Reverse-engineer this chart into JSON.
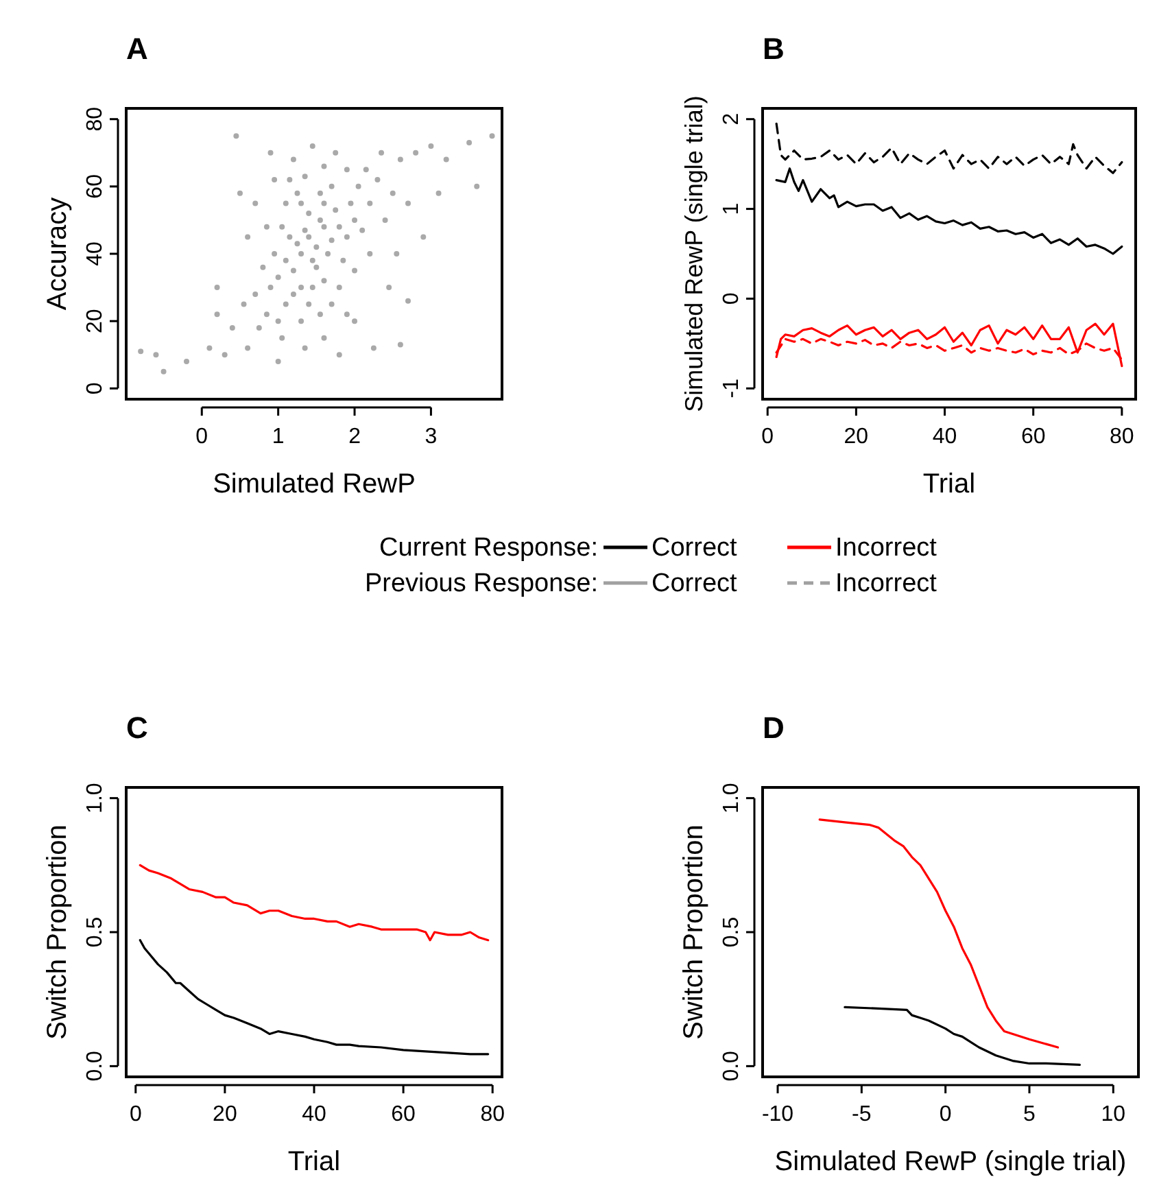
{
  "chart_data": [
    {
      "type": "scatter",
      "title": "A",
      "xlabel": "Simulated RewP",
      "ylabel": "Accuracy",
      "marker": "circle",
      "color": "#404040",
      "xlim": [
        -0.99,
        3.93
      ],
      "ylim": [
        -3.2,
        83.2
      ],
      "xticks": [
        0,
        1,
        2,
        3
      ],
      "yticks": [
        0,
        20,
        40,
        60,
        80
      ],
      "x": [
        1.4,
        1.5,
        1.3,
        1.6,
        1.45,
        1.55,
        1.2,
        1.7,
        1.35,
        1.65,
        1.25,
        1.5,
        1.4,
        1.6,
        1.1,
        1.8,
        1.3,
        1.75,
        1.15,
        1.9,
        1.0,
        1.2,
        1.45,
        1.85,
        1.95,
        1.05,
        1.3,
        1.55,
        1.7,
        2.0,
        1.1,
        1.4,
        1.6,
        1.8,
        2.1,
        2.05,
        1.25,
        0.95,
        0.9,
        0.85,
        1.0,
        1.3,
        1.55,
        1.7,
        2.0,
        2.2,
        2.3,
        2.15,
        1.9,
        1.6,
        1.35,
        1.1,
        0.85,
        0.8,
        0.7,
        0.75,
        1.05,
        1.35,
        1.6,
        1.9,
        2.2,
        2.4,
        2.5,
        2.6,
        2.35,
        1.75,
        1.45,
        1.2,
        0.95,
        0.6,
        0.5,
        0.55,
        0.4,
        0.6,
        0.3,
        0.1,
        -0.2,
        -0.5,
        -0.8,
        -0.6,
        0.2,
        0.45,
        2.7,
        2.8,
        3.0,
        3.2,
        3.5,
        3.8,
        3.6,
        2.9,
        2.7,
        2.6,
        2.25,
        1.8,
        1.0,
        0.2,
        2.45,
        2.55,
        3.1,
        2.0,
        1.15,
        0.7,
        0.9
      ],
      "values": [
        45,
        42,
        40,
        48,
        38,
        50,
        35,
        44,
        47,
        40,
        43,
        36,
        52,
        55,
        38,
        48,
        30,
        53,
        45,
        45,
        33,
        28,
        30,
        38,
        55,
        48,
        55,
        58,
        60,
        50,
        25,
        25,
        32,
        30,
        47,
        60,
        58,
        40,
        30,
        22,
        20,
        20,
        22,
        25,
        35,
        55,
        62,
        65,
        65,
        66,
        63,
        55,
        48,
        36,
        28,
        18,
        15,
        12,
        15,
        22,
        40,
        50,
        58,
        68,
        70,
        70,
        72,
        68,
        62,
        45,
        58,
        25,
        18,
        12,
        10,
        12,
        8,
        5,
        11,
        10,
        22,
        75,
        55,
        70,
        72,
        68,
        73,
        75,
        60,
        45,
        26,
        13,
        12,
        10,
        8,
        30,
        30,
        40,
        58,
        20,
        62,
        55,
        70
      ]
    },
    {
      "type": "line",
      "title": "B",
      "xlabel": "Trial",
      "ylabel": "Simulated RewP (single trial)",
      "xlim": [
        -1.12,
        83.12
      ],
      "ylim": [
        -1.12,
        2.12
      ],
      "xticks": [
        0,
        20,
        40,
        60,
        80
      ],
      "yticks": [
        -1,
        0,
        1,
        2
      ],
      "series": [
        {
          "color": "#000000",
          "line_style": "solid",
          "x": [
            2,
            4,
            5,
            6,
            7,
            8,
            10,
            12,
            14,
            15,
            16,
            18,
            20,
            22,
            24,
            26,
            28,
            30,
            32,
            34,
            36,
            38,
            40,
            42,
            44,
            46,
            48,
            50,
            52,
            54,
            56,
            58,
            60,
            62,
            64,
            66,
            68,
            70,
            72,
            74,
            76,
            78,
            80
          ],
          "values": [
            1.32,
            1.3,
            1.45,
            1.3,
            1.2,
            1.32,
            1.08,
            1.22,
            1.12,
            1.15,
            1.02,
            1.08,
            1.03,
            1.05,
            1.05,
            0.98,
            1.02,
            0.9,
            0.95,
            0.88,
            0.92,
            0.86,
            0.84,
            0.87,
            0.82,
            0.85,
            0.78,
            0.8,
            0.75,
            0.76,
            0.72,
            0.74,
            0.68,
            0.72,
            0.62,
            0.66,
            0.6,
            0.67,
            0.58,
            0.6,
            0.56,
            0.5,
            0.58
          ]
        },
        {
          "color": "#000000",
          "line_style": "dashed",
          "x": [
            2,
            3,
            4,
            6,
            8,
            10,
            12,
            14,
            16,
            18,
            20,
            22,
            24,
            26,
            28,
            30,
            32,
            34,
            36,
            38,
            40,
            42,
            44,
            46,
            48,
            50,
            52,
            54,
            56,
            58,
            60,
            62,
            64,
            66,
            68,
            69,
            70,
            72,
            74,
            76,
            78,
            80
          ],
          "values": [
            1.95,
            1.6,
            1.55,
            1.65,
            1.55,
            1.56,
            1.58,
            1.65,
            1.55,
            1.6,
            1.5,
            1.62,
            1.52,
            1.58,
            1.68,
            1.5,
            1.62,
            1.55,
            1.5,
            1.58,
            1.65,
            1.45,
            1.6,
            1.5,
            1.55,
            1.45,
            1.58,
            1.5,
            1.58,
            1.48,
            1.55,
            1.6,
            1.5,
            1.58,
            1.5,
            1.72,
            1.6,
            1.45,
            1.58,
            1.48,
            1.4,
            1.52
          ]
        },
        {
          "color": "#ff0000",
          "line_style": "solid",
          "x": [
            2,
            3,
            4,
            6,
            8,
            10,
            12,
            14,
            16,
            18,
            20,
            22,
            24,
            26,
            28,
            30,
            32,
            34,
            36,
            38,
            40,
            42,
            44,
            46,
            48,
            50,
            52,
            54,
            56,
            58,
            60,
            62,
            64,
            66,
            68,
            70,
            72,
            74,
            76,
            78,
            80
          ],
          "values": [
            -0.65,
            -0.45,
            -0.4,
            -0.42,
            -0.35,
            -0.33,
            -0.38,
            -0.42,
            -0.35,
            -0.3,
            -0.4,
            -0.35,
            -0.32,
            -0.42,
            -0.35,
            -0.45,
            -0.38,
            -0.35,
            -0.45,
            -0.4,
            -0.32,
            -0.48,
            -0.38,
            -0.52,
            -0.35,
            -0.3,
            -0.5,
            -0.35,
            -0.4,
            -0.32,
            -0.45,
            -0.3,
            -0.45,
            -0.45,
            -0.32,
            -0.6,
            -0.35,
            -0.28,
            -0.4,
            -0.28,
            -0.75
          ]
        },
        {
          "color": "#ff0000",
          "line_style": "dashed",
          "x": [
            2,
            4,
            6,
            8,
            10,
            12,
            14,
            16,
            18,
            20,
            22,
            24,
            26,
            28,
            30,
            32,
            34,
            36,
            38,
            40,
            42,
            44,
            46,
            48,
            50,
            52,
            54,
            56,
            58,
            60,
            62,
            64,
            66,
            68,
            70,
            72,
            74,
            76,
            78,
            80
          ],
          "values": [
            -0.6,
            -0.45,
            -0.48,
            -0.45,
            -0.5,
            -0.45,
            -0.48,
            -0.52,
            -0.48,
            -0.5,
            -0.46,
            -0.52,
            -0.5,
            -0.55,
            -0.48,
            -0.52,
            -0.5,
            -0.55,
            -0.52,
            -0.58,
            -0.55,
            -0.52,
            -0.6,
            -0.55,
            -0.58,
            -0.55,
            -0.58,
            -0.6,
            -0.56,
            -0.62,
            -0.58,
            -0.6,
            -0.55,
            -0.62,
            -0.58,
            -0.5,
            -0.55,
            -0.58,
            -0.55,
            -0.68
          ]
        }
      ]
    },
    {
      "type": "other",
      "annotations": [
        "Current Response:",
        "Previous Response:"
      ],
      "series": [
        {
          "name": "Correct",
          "color": "#000000",
          "line_style": "solid"
        },
        {
          "name": "Incorrect",
          "color": "#ff0000",
          "line_style": "solid"
        },
        {
          "name": "Correct",
          "color": "#a0a0a0",
          "line_style": "solid"
        },
        {
          "name": "Incorrect",
          "color": "#a0a0a0",
          "line_style": "dashed"
        }
      ]
    },
    {
      "type": "line",
      "title": "C",
      "xlabel": "Trial",
      "ylabel": "Switch Proportion",
      "xlim": [
        -2.12,
        82.12
      ],
      "ylim": [
        -0.04,
        1.04
      ],
      "xticks": [
        0,
        20,
        40,
        60,
        80
      ],
      "yticks": [
        {
          "value": 0,
          "label": "0.0"
        },
        {
          "value": 0.5,
          "label": "0.5"
        },
        {
          "value": 1,
          "label": "1.0"
        }
      ],
      "series": [
        {
          "color": "#ff0000",
          "x": [
            1,
            3,
            5,
            8,
            10,
            12,
            15,
            18,
            20,
            22,
            25,
            28,
            30,
            32,
            35,
            38,
            40,
            43,
            45,
            48,
            50,
            53,
            55,
            58,
            60,
            63,
            65,
            66,
            67,
            70,
            73,
            75,
            77,
            79
          ],
          "values": [
            0.75,
            0.73,
            0.72,
            0.7,
            0.68,
            0.66,
            0.65,
            0.63,
            0.63,
            0.61,
            0.6,
            0.57,
            0.58,
            0.58,
            0.56,
            0.55,
            0.55,
            0.54,
            0.54,
            0.52,
            0.53,
            0.52,
            0.51,
            0.51,
            0.51,
            0.51,
            0.5,
            0.47,
            0.5,
            0.49,
            0.49,
            0.5,
            0.48,
            0.47
          ]
        },
        {
          "color": "#000000",
          "x": [
            1,
            2,
            3,
            5,
            7,
            9,
            10,
            12,
            14,
            16,
            18,
            20,
            22,
            25,
            28,
            30,
            32,
            35,
            38,
            40,
            43,
            45,
            48,
            50,
            55,
            60,
            65,
            70,
            75,
            79
          ],
          "values": [
            0.47,
            0.44,
            0.42,
            0.38,
            0.35,
            0.31,
            0.31,
            0.28,
            0.25,
            0.23,
            0.21,
            0.19,
            0.18,
            0.16,
            0.14,
            0.12,
            0.13,
            0.12,
            0.11,
            0.1,
            0.09,
            0.08,
            0.08,
            0.075,
            0.07,
            0.06,
            0.055,
            0.05,
            0.045,
            0.045
          ]
        }
      ]
    },
    {
      "type": "line",
      "title": "D",
      "xlabel": "Simulated RewP (single trial)",
      "ylabel": "Switch Proportion",
      "xlim": [
        -10.9,
        11.5
      ],
      "ylim": [
        -0.04,
        1.04
      ],
      "xticks": [
        -10,
        -5,
        0,
        5,
        10
      ],
      "yticks": [
        {
          "value": 0,
          "label": "0.0"
        },
        {
          "value": 0.5,
          "label": "0.5"
        },
        {
          "value": 1,
          "label": "1.0"
        }
      ],
      "series": [
        {
          "color": "#ff0000",
          "x": [
            -7.5,
            -6,
            -4.5,
            -4,
            -3,
            -2.5,
            -2,
            -1.5,
            -1,
            -0.5,
            0,
            0.5,
            1,
            1.5,
            2,
            2.5,
            3,
            3.5,
            5,
            6.7
          ],
          "values": [
            0.92,
            0.91,
            0.9,
            0.89,
            0.84,
            0.82,
            0.78,
            0.75,
            0.7,
            0.65,
            0.58,
            0.52,
            0.44,
            0.38,
            0.3,
            0.22,
            0.17,
            0.13,
            0.1,
            0.07
          ]
        },
        {
          "color": "#000000",
          "x": [
            -6,
            -4,
            -2.3,
            -2,
            -1.5,
            -1,
            0,
            0.5,
            1,
            2,
            3,
            4,
            5,
            6,
            8
          ],
          "values": [
            0.22,
            0.215,
            0.21,
            0.19,
            0.18,
            0.17,
            0.14,
            0.12,
            0.11,
            0.07,
            0.04,
            0.02,
            0.01,
            0.01,
            0.005
          ]
        }
      ]
    }
  ]
}
